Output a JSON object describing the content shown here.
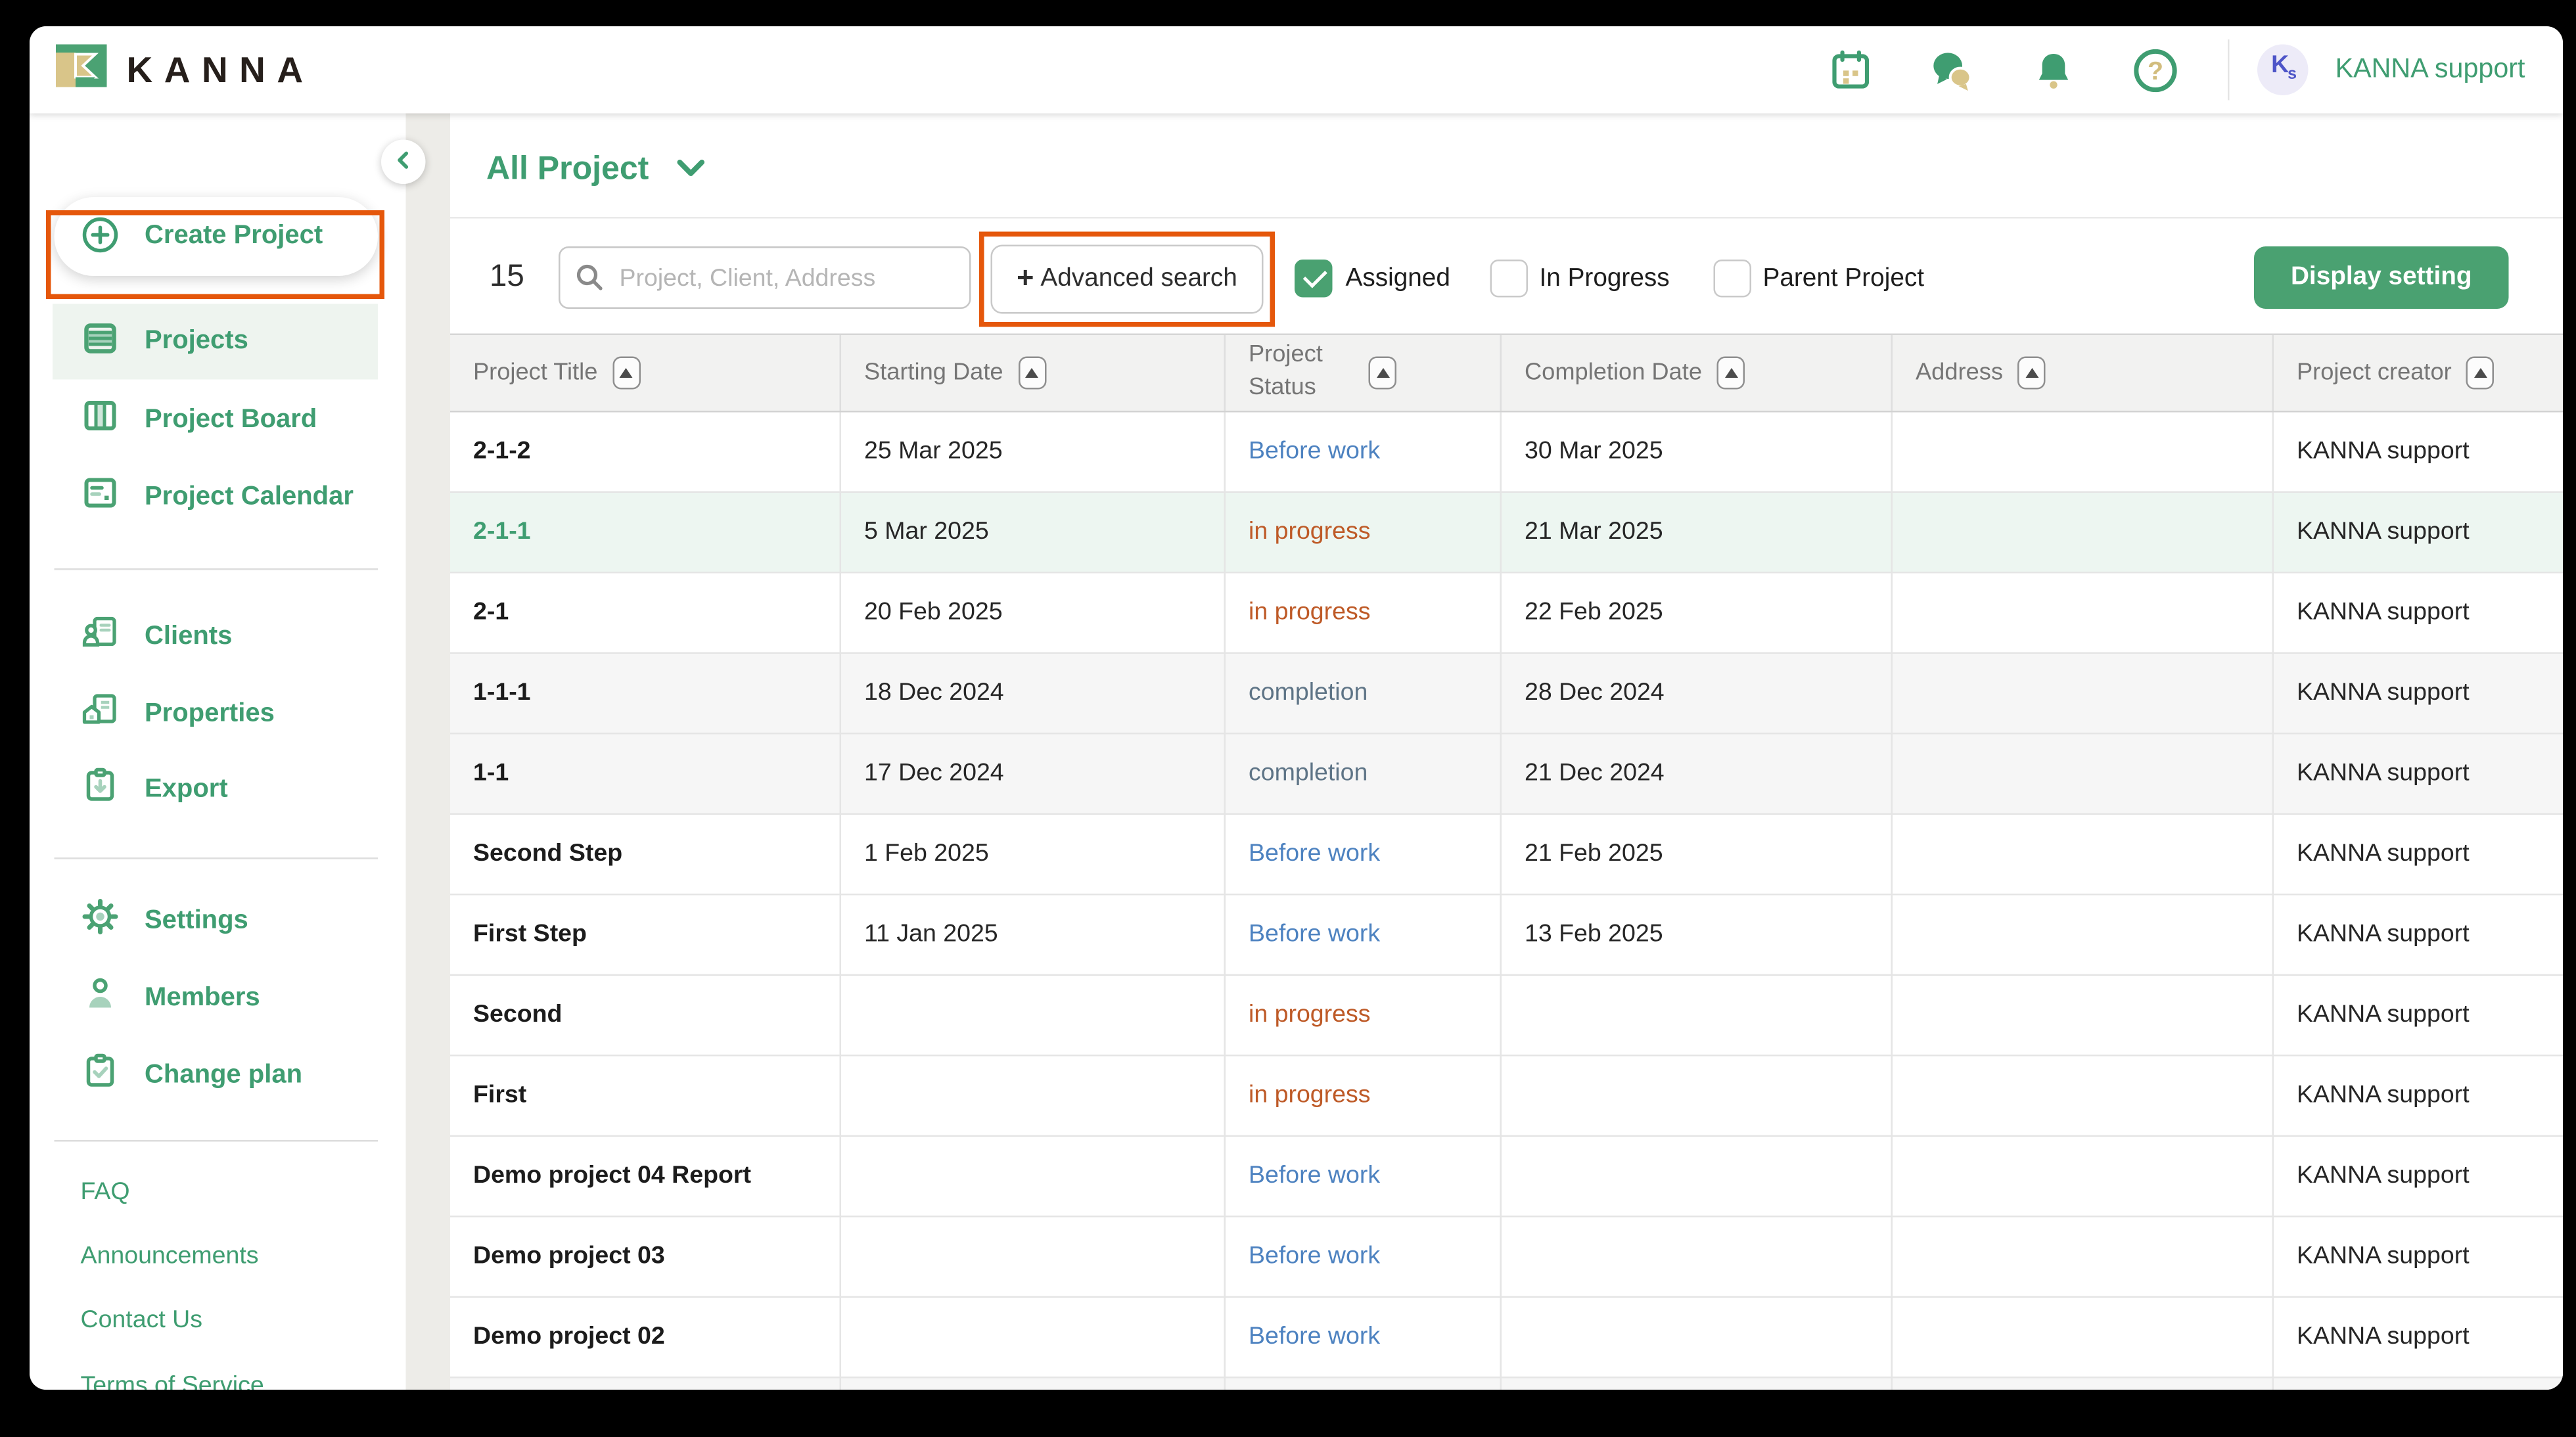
{
  "topbar": {
    "brand": "KANNA",
    "account_name": "KANNA support",
    "avatar_text_large": "K",
    "avatar_text_small": "s",
    "icons": [
      "calendar-icon",
      "chat-icon",
      "bell-icon",
      "help-icon"
    ]
  },
  "sidebar": {
    "create_label": "Create Project",
    "items": [
      {
        "label": "Projects",
        "icon": "projects-icon",
        "active": true
      },
      {
        "label": "Project Board",
        "icon": "project-board-icon",
        "active": false
      },
      {
        "label": "Project Calendar",
        "icon": "project-calendar-icon",
        "active": false
      },
      {
        "label": "Clients",
        "icon": "clients-icon",
        "active": false
      },
      {
        "label": "Properties",
        "icon": "properties-icon",
        "active": false
      },
      {
        "label": "Export",
        "icon": "export-icon",
        "active": false
      },
      {
        "label": "Settings",
        "icon": "settings-icon",
        "active": false
      },
      {
        "label": "Members",
        "icon": "members-icon",
        "active": false
      },
      {
        "label": "Change plan",
        "icon": "change-plan-icon",
        "active": false
      }
    ],
    "links": [
      {
        "label": "FAQ"
      },
      {
        "label": "Announcements"
      },
      {
        "label": "Contact Us"
      },
      {
        "label": "Terms of Service"
      }
    ]
  },
  "main": {
    "view_title": "All Project",
    "result_count": "15",
    "search_placeholder": "Project, Client, Address",
    "advanced_search": {
      "plus": "+",
      "label": "Advanced search"
    },
    "filters": [
      {
        "label": "Assigned",
        "checked": true
      },
      {
        "label": "In Progress",
        "checked": false
      },
      {
        "label": "Parent Project",
        "checked": false
      }
    ],
    "display_setting_label": "Display setting"
  },
  "table": {
    "columns": [
      {
        "label": "Project Title"
      },
      {
        "label": "Starting Date"
      },
      {
        "label": "Project Status"
      },
      {
        "label": "Completion Date"
      },
      {
        "label": "Address"
      },
      {
        "label": "Project creator"
      }
    ],
    "rows": [
      {
        "title": "2-1-2",
        "starting_date": "25 Mar 2025",
        "status": "Before work",
        "status_type": "before",
        "completion_date": "30 Mar 2025",
        "address": "",
        "creator": "KANNA support",
        "row_bg": "white",
        "title_green": false
      },
      {
        "title": "2-1-1",
        "starting_date": "5 Mar 2025",
        "status": "in progress",
        "status_type": "progress",
        "completion_date": "21 Mar 2025",
        "address": "",
        "creator": "KANNA support",
        "row_bg": "mint",
        "title_green": true
      },
      {
        "title": "2-1",
        "starting_date": "20 Feb 2025",
        "status": "in progress",
        "status_type": "progress",
        "completion_date": "22 Feb 2025",
        "address": "",
        "creator": "KANNA support",
        "row_bg": "white",
        "title_green": false
      },
      {
        "title": "1-1-1",
        "starting_date": "18 Dec 2024",
        "status": "completion",
        "status_type": "completion",
        "completion_date": "28 Dec 2024",
        "address": "",
        "creator": "KANNA support",
        "row_bg": "gray",
        "title_green": false
      },
      {
        "title": "1-1",
        "starting_date": "17 Dec 2024",
        "status": "completion",
        "status_type": "completion",
        "completion_date": "21 Dec 2024",
        "address": "",
        "creator": "KANNA support",
        "row_bg": "gray",
        "title_green": false
      },
      {
        "title": "Second Step",
        "starting_date": "1 Feb 2025",
        "status": "Before work",
        "status_type": "before",
        "completion_date": "21 Feb 2025",
        "address": "",
        "creator": "KANNA support",
        "row_bg": "white",
        "title_green": false
      },
      {
        "title": "First Step",
        "starting_date": "11 Jan 2025",
        "status": "Before work",
        "status_type": "before",
        "completion_date": "13 Feb 2025",
        "address": "",
        "creator": "KANNA support",
        "row_bg": "white",
        "title_green": false
      },
      {
        "title": "Second",
        "starting_date": "",
        "status": "in progress",
        "status_type": "progress",
        "completion_date": "",
        "address": "",
        "creator": "KANNA support",
        "row_bg": "white",
        "title_green": false
      },
      {
        "title": "First",
        "starting_date": "",
        "status": "in progress",
        "status_type": "progress",
        "completion_date": "",
        "address": "",
        "creator": "KANNA support",
        "row_bg": "white",
        "title_green": false
      },
      {
        "title": "Demo project 04 Report",
        "starting_date": "",
        "status": "Before work",
        "status_type": "before",
        "completion_date": "",
        "address": "",
        "creator": "KANNA support",
        "row_bg": "white",
        "title_green": false
      },
      {
        "title": "Demo project 03",
        "starting_date": "",
        "status": "Before work",
        "status_type": "before",
        "completion_date": "",
        "address": "",
        "creator": "KANNA support",
        "row_bg": "white",
        "title_green": false
      },
      {
        "title": "Demo project 02",
        "starting_date": "",
        "status": "Before work",
        "status_type": "before",
        "completion_date": "",
        "address": "",
        "creator": "KANNA support",
        "row_bg": "white",
        "title_green": false
      }
    ]
  },
  "colors": {
    "brand_green": "#3F9D71",
    "light_green_accent": "#A7D2BC",
    "annotation_orange": "#E5570B",
    "status_before_work": "#4D82C0",
    "status_in_progress": "#BE5A27",
    "status_completion": "#5E7486",
    "active_item_bg": "#EEF4EF",
    "row_mint_bg": "#EDF6F1",
    "row_gray_bg": "#F6F6F6",
    "display_setting_bg": "#4AA171",
    "avatar_text": "#4E55C8",
    "logo_tan": "#D9C589"
  }
}
